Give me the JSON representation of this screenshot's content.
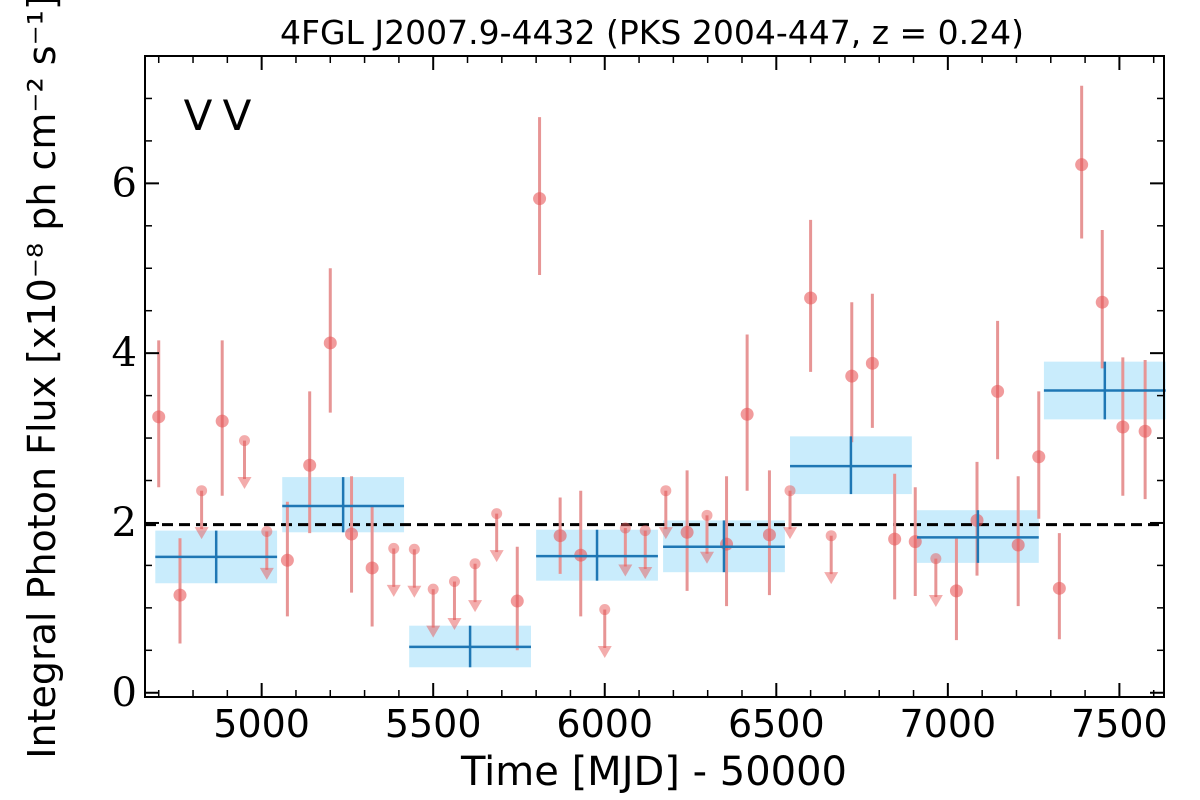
{
  "chart_data": {
    "type": "scatter",
    "title": "4FGL J2007.9-4432 (PKS 2004-447, z = 0.24)",
    "xlabel": "Time [MJD] - 50000",
    "ylabel": "Integral Photon Flux [x10⁻⁸ ph cm⁻² s⁻¹]",
    "xlim": [
      4660,
      7630
    ],
    "ylim": [
      -0.05,
      7.5
    ],
    "x_ticks": [
      5000,
      5500,
      6000,
      6500,
      7000,
      7500
    ],
    "y_ticks": [
      0,
      2,
      4,
      6
    ],
    "minor_x_step": 100,
    "minor_y_step": 0.5,
    "grid": false,
    "legend_labels": [
      "V",
      "V"
    ],
    "legend_position": "top-left",
    "baseline": 1.98,
    "colors": {
      "points": "#e8595a",
      "errorbar": "#e79595",
      "binned": "#1f77b4",
      "bin_band": "#c9ecfc",
      "legend_v1": "#1f77b4",
      "legend_v2": "#d62728",
      "baseline": "#000000"
    },
    "series": [
      {
        "kind": "detections",
        "points": [
          {
            "x": 4700,
            "y": 3.25,
            "lo": 2.42,
            "hi": 4.15
          },
          {
            "x": 4762,
            "y": 1.15,
            "lo": 0.58,
            "hi": 1.82
          },
          {
            "x": 4885,
            "y": 3.2,
            "lo": 2.32,
            "hi": 4.15
          },
          {
            "x": 5075,
            "y": 1.56,
            "lo": 0.9,
            "hi": 2.25
          },
          {
            "x": 5140,
            "y": 2.68,
            "lo": 1.88,
            "hi": 3.55
          },
          {
            "x": 5200,
            "y": 4.12,
            "lo": 3.3,
            "hi": 5.0
          },
          {
            "x": 5262,
            "y": 1.87,
            "lo": 1.18,
            "hi": 2.55
          },
          {
            "x": 5322,
            "y": 1.47,
            "lo": 0.78,
            "hi": 2.2
          },
          {
            "x": 5745,
            "y": 1.08,
            "lo": 0.5,
            "hi": 1.72
          },
          {
            "x": 5810,
            "y": 5.82,
            "lo": 4.92,
            "hi": 6.78
          },
          {
            "x": 5870,
            "y": 1.85,
            "lo": 1.4,
            "hi": 2.3
          },
          {
            "x": 5930,
            "y": 1.62,
            "lo": 0.9,
            "hi": 2.38
          },
          {
            "x": 6240,
            "y": 1.89,
            "lo": 1.2,
            "hi": 2.62
          },
          {
            "x": 6355,
            "y": 1.75,
            "lo": 1.02,
            "hi": 2.55
          },
          {
            "x": 6415,
            "y": 3.28,
            "lo": 2.38,
            "hi": 4.22
          },
          {
            "x": 6480,
            "y": 1.86,
            "lo": 1.15,
            "hi": 2.62
          },
          {
            "x": 6600,
            "y": 4.65,
            "lo": 3.78,
            "hi": 5.57
          },
          {
            "x": 6720,
            "y": 3.73,
            "lo": 2.95,
            "hi": 4.6
          },
          {
            "x": 6780,
            "y": 3.88,
            "lo": 3.12,
            "hi": 4.7
          },
          {
            "x": 6845,
            "y": 1.81,
            "lo": 1.1,
            "hi": 2.58
          },
          {
            "x": 6905,
            "y": 1.78,
            "lo": 1.14,
            "hi": 2.42
          },
          {
            "x": 7025,
            "y": 1.2,
            "lo": 0.62,
            "hi": 1.82
          },
          {
            "x": 7085,
            "y": 2.03,
            "lo": 1.38,
            "hi": 2.72
          },
          {
            "x": 7145,
            "y": 3.55,
            "lo": 2.75,
            "hi": 4.38
          },
          {
            "x": 7205,
            "y": 1.74,
            "lo": 1.02,
            "hi": 2.55
          },
          {
            "x": 7265,
            "y": 2.78,
            "lo": 2.05,
            "hi": 3.55
          },
          {
            "x": 7325,
            "y": 1.23,
            "lo": 0.63,
            "hi": 1.88
          },
          {
            "x": 7390,
            "y": 6.22,
            "lo": 5.35,
            "hi": 7.15
          },
          {
            "x": 7450,
            "y": 4.6,
            "lo": 3.82,
            "hi": 5.45
          },
          {
            "x": 7510,
            "y": 3.13,
            "lo": 2.32,
            "hi": 3.95
          },
          {
            "x": 7575,
            "y": 3.08,
            "lo": 2.28,
            "hi": 3.92
          }
        ]
      },
      {
        "kind": "upper_limits",
        "points": [
          {
            "x": 4825,
            "y": 2.38
          },
          {
            "x": 4950,
            "y": 2.97
          },
          {
            "x": 5015,
            "y": 1.9
          },
          {
            "x": 5385,
            "y": 1.7
          },
          {
            "x": 5445,
            "y": 1.69
          },
          {
            "x": 5500,
            "y": 1.22
          },
          {
            "x": 5562,
            "y": 1.31
          },
          {
            "x": 5622,
            "y": 1.52
          },
          {
            "x": 5685,
            "y": 2.11
          },
          {
            "x": 6000,
            "y": 0.98
          },
          {
            "x": 6060,
            "y": 1.94
          },
          {
            "x": 6118,
            "y": 1.91
          },
          {
            "x": 6178,
            "y": 2.38
          },
          {
            "x": 6298,
            "y": 2.09
          },
          {
            "x": 6540,
            "y": 2.38
          },
          {
            "x": 6660,
            "y": 1.85
          },
          {
            "x": 6965,
            "y": 1.58
          }
        ]
      },
      {
        "kind": "binned",
        "bins": [
          {
            "x0": 4690,
            "x1": 5045,
            "y": 1.6,
            "ylo": 1.29,
            "yhi": 1.91
          },
          {
            "x0": 5060,
            "x1": 5415,
            "y": 2.2,
            "ylo": 1.89,
            "yhi": 2.54
          },
          {
            "x0": 5430,
            "x1": 5785,
            "y": 0.54,
            "ylo": 0.3,
            "yhi": 0.79
          },
          {
            "x0": 5800,
            "x1": 6155,
            "y": 1.61,
            "ylo": 1.32,
            "yhi": 1.92
          },
          {
            "x0": 6170,
            "x1": 6525,
            "y": 1.72,
            "ylo": 1.42,
            "yhi": 2.03
          },
          {
            "x0": 6540,
            "x1": 6895,
            "y": 2.67,
            "ylo": 2.34,
            "yhi": 3.02
          },
          {
            "x0": 6910,
            "x1": 7265,
            "y": 1.83,
            "ylo": 1.53,
            "yhi": 2.15
          },
          {
            "x0": 7280,
            "x1": 7635,
            "y": 3.56,
            "ylo": 3.22,
            "yhi": 3.9
          }
        ]
      }
    ]
  }
}
